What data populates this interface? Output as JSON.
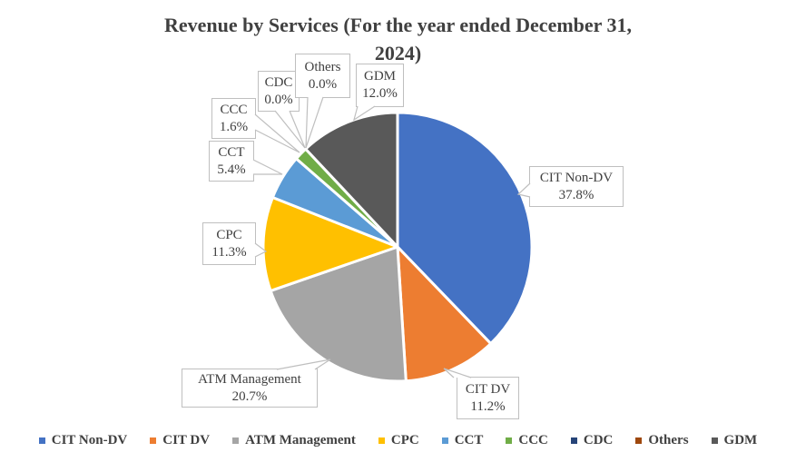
{
  "chart_data": {
    "type": "pie",
    "title": "Revenue by Services (For the year ended December 31, 2024)",
    "title_lines": [
      "Revenue by Services (For the year ended December 31,",
      "2024)"
    ],
    "unit": "%",
    "direction": "clockwise",
    "start_angle_deg": 0,
    "slices": [
      {
        "name": "CIT Non-DV",
        "value": 37.8,
        "label": "37.8%",
        "color": "#4472C4"
      },
      {
        "name": "CIT DV",
        "value": 11.2,
        "label": "11.2%",
        "color": "#ED7D31"
      },
      {
        "name": "ATM Management",
        "value": 20.7,
        "label": "20.7%",
        "color": "#A5A5A5"
      },
      {
        "name": "CPC",
        "value": 11.3,
        "label": "11.3%",
        "color": "#FFC000"
      },
      {
        "name": "CCT",
        "value": 5.4,
        "label": "5.4%",
        "color": "#5B9BD5"
      },
      {
        "name": "CCC",
        "value": 1.6,
        "label": "1.6%",
        "color": "#70AD47"
      },
      {
        "name": "CDC",
        "value": 0.0,
        "label": "0.0%",
        "color": "#264478"
      },
      {
        "name": "Others",
        "value": 0.0,
        "label": "0.0%",
        "color": "#9E480E"
      },
      {
        "name": "GDM",
        "value": 12.0,
        "label": "12.0%",
        "color": "#595959"
      }
    ],
    "legend": {
      "position": "bottom",
      "items": [
        "CIT Non-DV",
        "CIT DV",
        "ATM Management",
        "CPC",
        "CCT",
        "CCC",
        "CDC",
        "Others",
        "GDM"
      ]
    }
  },
  "styles": {
    "title_color": "#404040",
    "label_color": "#404040",
    "callout_border": "#BFBFBF",
    "leader_line": "#BFBFBF",
    "slice_separator": "#FFFFFF",
    "background": "#FFFFFF"
  }
}
